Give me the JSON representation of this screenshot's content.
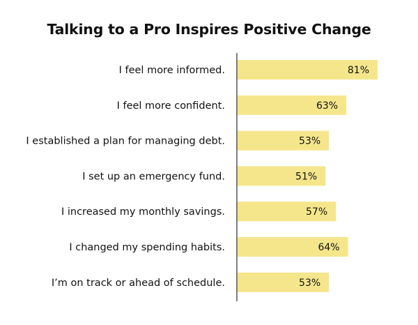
{
  "chart_data": {
    "type": "bar",
    "orientation": "horizontal",
    "title": "Talking to a Pro Inspires Positive Change",
    "categories": [
      "I feel more informed.",
      "I feel more confident.",
      "I established a plan for managing debt.",
      "I set up an emergency fund.",
      "I increased my monthly savings.",
      "I changed my spending habits.",
      "I’m on track or ahead of schedule."
    ],
    "values": [
      81,
      63,
      53,
      51,
      57,
      64,
      53
    ],
    "value_labels": [
      "81%",
      "63%",
      "53%",
      "51%",
      "57%",
      "64%",
      "53%"
    ],
    "xlim": [
      0,
      81
    ],
    "xlabel": "",
    "ylabel": "",
    "grid": false,
    "legend": "none",
    "colors": {
      "bar": "#f5e68c",
      "axis": "#555555",
      "label": "#111111"
    }
  }
}
